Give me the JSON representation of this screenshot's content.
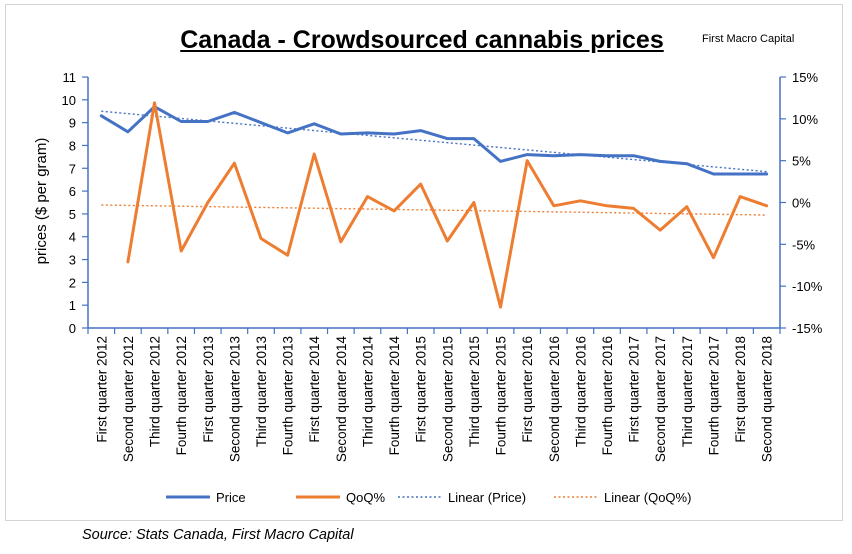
{
  "title": "Canada - Crowdsourced cannabis prices",
  "brand": "First Macro Capital",
  "source": "Source: Stats Canada, First Macro Capital",
  "colors": {
    "price": "#4472C4",
    "qoq": "#ED7D31",
    "axis": "#4472C4"
  },
  "chart_data": {
    "type": "line",
    "categories": [
      "First quarter 2012",
      "Second quarter 2012",
      "Third quarter 2012",
      "Fourth quarter 2012",
      "First quarter 2013",
      "Second quarter 2013",
      "Third quarter 2013",
      "Fourth quarter 2013",
      "First quarter 2014",
      "Second quarter 2014",
      "Third quarter 2014",
      "Fourth quarter 2014",
      "First quarter 2015",
      "Second quarter 2015",
      "Third quarter 2015",
      "Fourth quarter 2015",
      "First quarter 2016",
      "Second quarter 2016",
      "Third quarter 2016",
      "Fourth quarter 2016",
      "First quarter 2017",
      "Second quarter 2017",
      "Third quarter 2017",
      "Fourth quarter 2017",
      "First quarter 2018",
      "Second quarter 2018"
    ],
    "series": [
      {
        "name": "Price",
        "axis": "left",
        "values": [
          9.3,
          8.6,
          9.7,
          9.05,
          9.05,
          9.45,
          9.0,
          8.55,
          8.95,
          8.5,
          8.55,
          8.5,
          8.65,
          8.3,
          8.3,
          7.3,
          7.6,
          7.55,
          7.6,
          7.55,
          7.55,
          7.3,
          7.2,
          6.75,
          6.75,
          6.75
        ]
      },
      {
        "name": "QoQ%",
        "axis": "right",
        "values": [
          null,
          -7.1,
          11.9,
          -5.8,
          0.0,
          4.7,
          -4.3,
          -6.3,
          5.8,
          -4.7,
          0.7,
          -1.0,
          2.2,
          -4.6,
          0.0,
          -12.5,
          5.0,
          -0.4,
          0.2,
          -0.4,
          -0.7,
          -3.3,
          -0.5,
          -6.6,
          0.7,
          -0.4
        ]
      }
    ],
    "trendlines": [
      {
        "name": "Linear (Price)",
        "of": "Price",
        "start": 9.5,
        "end": 6.85
      },
      {
        "name": "Linear (QoQ%)",
        "of": "QoQ%",
        "start": -0.3,
        "end": -1.5
      }
    ],
    "ylabel": "prices ($ per gram)",
    "ylim": [
      0,
      11
    ],
    "yticks": [
      "0",
      "1",
      "2",
      "3",
      "4",
      "5",
      "6",
      "7",
      "8",
      "9",
      "10",
      "11"
    ],
    "y2lim": [
      -15,
      15
    ],
    "y2ticks": [
      "-15%",
      "-10%",
      "-5%",
      "0%",
      "5%",
      "10%",
      "15%"
    ],
    "grid": false,
    "legend": "bottom",
    "legend_labels": [
      "Price",
      "QoQ%",
      "Linear (Price)",
      "Linear (QoQ%)"
    ]
  }
}
